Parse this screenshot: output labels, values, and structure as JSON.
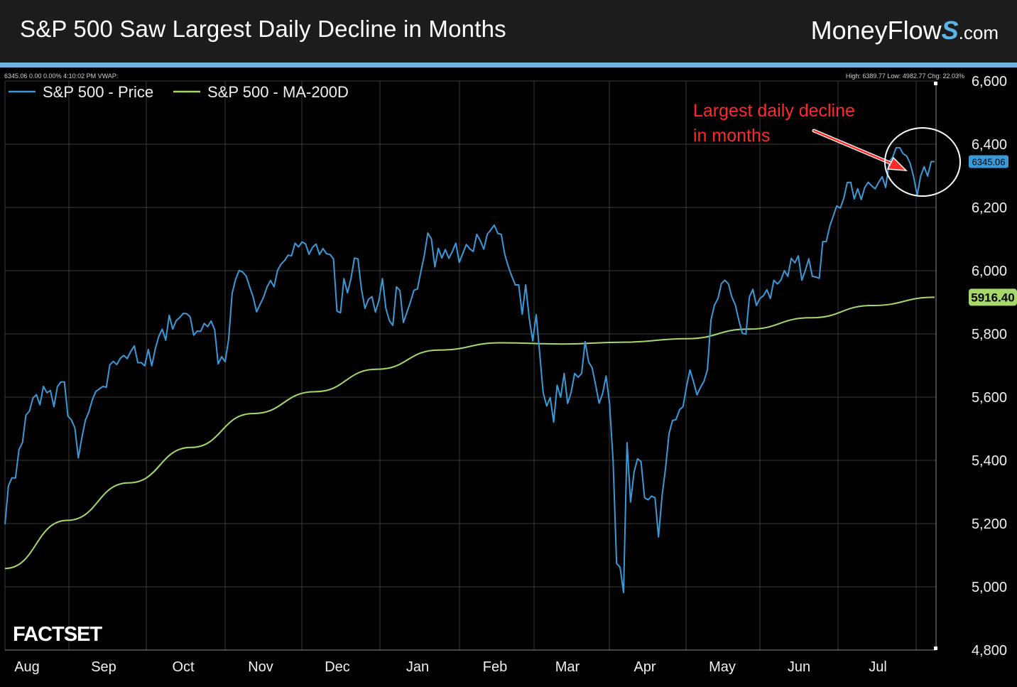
{
  "header": {
    "title": "S&P 500 Saw Largest Daily Decline in Months",
    "brand_main": "MoneyFlow",
    "brand_s": "S",
    "brand_suffix": ".com"
  },
  "chart_data": {
    "type": "line",
    "info_left": "6345.06 0.00 0.00% 4:10:02 PM VWAP:",
    "info_right": "High: 6389.77 Low: 4982.77 Chg: 22.03%",
    "annotation": [
      "Largest daily decline",
      "in months"
    ],
    "watermark": "FACTSET",
    "legend_position": "top-left",
    "grid": true,
    "ylim": [
      4800,
      6600
    ],
    "y_ticks": [
      {
        "value": 6600,
        "label": "6,600"
      },
      {
        "value": 6400,
        "label": "6,400"
      },
      {
        "value": 6200,
        "label": "6,200"
      },
      {
        "value": 6000,
        "label": "6,000"
      },
      {
        "value": 5800,
        "label": "5,800"
      },
      {
        "value": 5600,
        "label": "5,600"
      },
      {
        "value": 5400,
        "label": "5,400"
      },
      {
        "value": 5200,
        "label": "5,200"
      },
      {
        "value": 5000,
        "label": "5,000"
      },
      {
        "value": 4800,
        "label": "4,800"
      }
    ],
    "x_labels": [
      "Aug",
      "Sep",
      "Oct",
      "Nov",
      "Dec",
      "Jan",
      "Feb",
      "Mar",
      "Apr",
      "May",
      "Jun",
      "Jul"
    ],
    "colors": {
      "price": "#3a9ad9",
      "ma": "#a6d96a",
      "annotation": "#ff2a2a",
      "grid": "#3a3a3a"
    },
    "series": [
      {
        "name": "S&P 500 - Price",
        "last_label": "6345.06",
        "values": [
          5198,
          5320,
          5345,
          5344,
          5434,
          5456,
          5543,
          5556,
          5597,
          5608,
          5576,
          5634,
          5614,
          5621,
          5570,
          5633,
          5648,
          5648,
          5540,
          5528,
          5503,
          5408,
          5472,
          5527,
          5553,
          5592,
          5618,
          5626,
          5634,
          5631,
          5702,
          5713,
          5703,
          5723,
          5732,
          5722,
          5745,
          5762,
          5709,
          5709,
          5699,
          5751,
          5699,
          5752,
          5792,
          5815,
          5780,
          5859,
          5815,
          5842,
          5852,
          5865,
          5864,
          5854,
          5796,
          5809,
          5808,
          5833,
          5823,
          5841,
          5813,
          5705,
          5728,
          5712,
          5782,
          5929,
          5973,
          6001,
          5996,
          5983,
          5949,
          5917,
          5870,
          5893,
          5917,
          5949,
          5969,
          5949,
          6001,
          6021,
          6032,
          6049,
          6047,
          6087,
          6075,
          6091,
          6085,
          6052,
          6074,
          6084,
          6051,
          6070,
          6054,
          6051,
          6037,
          5872,
          5867,
          5975,
          5930,
          5975,
          6040,
          6037,
          5942,
          5881,
          5909,
          5918,
          5869,
          5907,
          5975,
          5880,
          5842,
          5827,
          5949,
          5937,
          5836,
          5868,
          5900,
          5938,
          5942,
          5997,
          6049,
          6119,
          6101,
          6012,
          6071,
          6040,
          6067,
          6039,
          6061,
          6087,
          6026,
          6055,
          6083,
          6069,
          6061,
          6115,
          6095,
          6068,
          6115,
          6129,
          6144,
          6118,
          6115,
          6052,
          6014,
          5983,
          5955,
          5955,
          5862,
          5955,
          5849,
          5778,
          5861,
          5739,
          5614,
          5572,
          5599,
          5521,
          5638,
          5599,
          5675,
          5580,
          5615,
          5675,
          5663,
          5675,
          5776,
          5712,
          5693,
          5638,
          5581,
          5611,
          5667,
          5580,
          5397,
          5074,
          5062,
          4982,
          5456,
          5268,
          5363,
          5405,
          5396,
          5282,
          5275,
          5287,
          5282,
          5158,
          5287,
          5375,
          5484,
          5526,
          5529,
          5560,
          5570,
          5633,
          5686,
          5650,
          5607,
          5631,
          5650,
          5687,
          5844,
          5891,
          5912,
          5959,
          5970,
          5958,
          5916,
          5891,
          5842,
          5802,
          5799,
          5917,
          5941,
          5890,
          5912,
          5921,
          5940,
          5912,
          5970,
          5958,
          5970,
          6000,
          5982,
          6039,
          6025,
          6047,
          5970,
          6000,
          6038,
          5982,
          5980,
          5976,
          6092,
          6092,
          6141,
          6173,
          6205,
          6198,
          6229,
          6279,
          6279,
          6227,
          6259,
          6225,
          6263,
          6280,
          6268,
          6259,
          6280,
          6297,
          6263,
          6344,
          6359,
          6389,
          6389,
          6370,
          6363,
          6339,
          6296,
          6238,
          6299,
          6329,
          6299,
          6345,
          6345
        ]
      },
      {
        "name": "S&P 500 - MA-200D",
        "last_label": "5916.40",
        "values": [
          5058,
          5210,
          5329,
          5441,
          5548,
          5617,
          5688,
          5749,
          5772,
          5768,
          5774,
          5785,
          5815,
          5851,
          5890,
          5916
        ]
      }
    ]
  }
}
